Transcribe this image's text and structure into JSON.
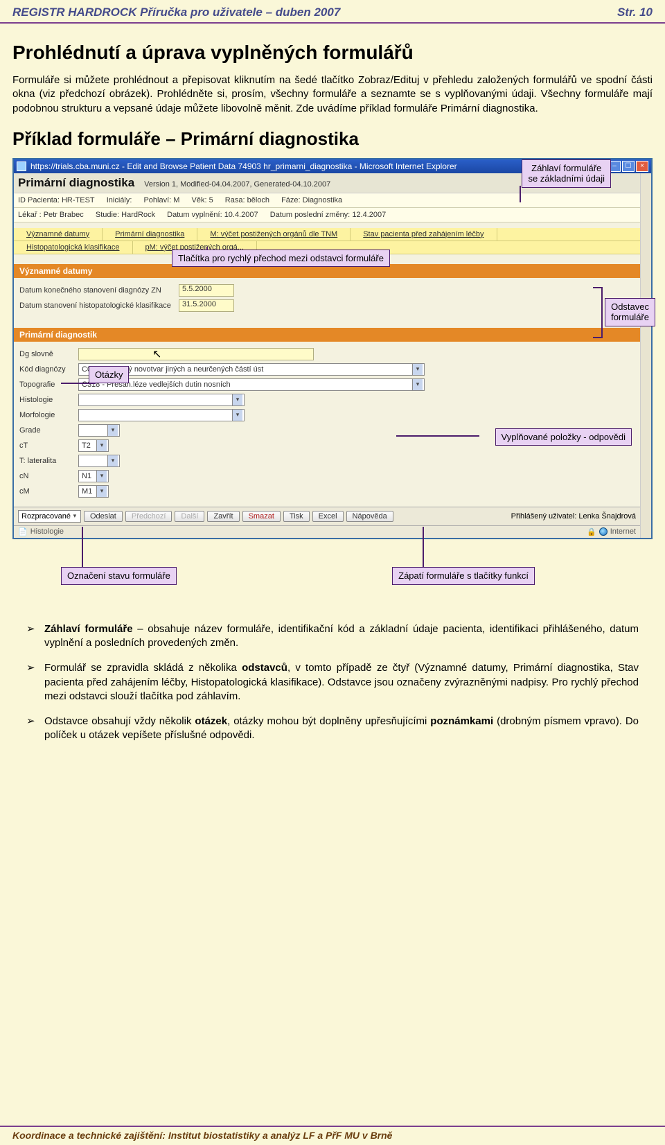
{
  "header": {
    "left": "REGISTR HARDROCK   Příručka pro uživatele – duben 2007",
    "right": "Str.   10"
  },
  "h1": "Prohlédnutí a úprava vyplněných formulářů",
  "para1": "Formuláře si můžete prohlédnout a přepisovat kliknutím na šedé tlačítko Zobraz/Edituj v přehledu založených formulářů ve spodní části okna (viz předchozí obrázek). Prohlédněte si, prosím, všechny formuláře a seznamte se s vyplňovanými údaji. Všechny formuláře mají podobnou strukturu a vepsané údaje můžete libovolně měnit. Zde uvádíme příklad formuláře Primární diagnostika.",
  "h2": "Příklad formuláře – Primární diagnostika",
  "window": {
    "title": "https://trials.cba.muni.cz - Edit and Browse Patient Data 74903 hr_primarni_diagnostika - Microsoft Internet Explorer",
    "app_title": "Primární diagnostika",
    "version": "Version 1, Modified-04.04.2007, Generated-04.10.2007",
    "id_row1": {
      "id_patient_lbl": "ID Pacienta:",
      "id_patient": "HR-TEST",
      "inic_lbl": "Iniciály:",
      "inic": "",
      "pohlavi_lbl": "Pohlaví:",
      "pohlavi": "M",
      "vek_lbl": "Věk:",
      "vek": "5",
      "rasa_lbl": "Rasa:",
      "rasa": "běloch",
      "faze_lbl": "Fáze:",
      "faze": "Diagnostika"
    },
    "id_row2": {
      "lekar_lbl": "Lékař :",
      "lekar": "Petr Brabec",
      "studie_lbl": "Studie:",
      "studie": "HardRock",
      "vypln_lbl": "Datum vyplnění:",
      "vypln": "10.4.2007",
      "zmena_lbl": "Datum poslední změny:",
      "zmena": "12.4.2007"
    },
    "tabs1": [
      "Významné datumy",
      "Primární diagnostika",
      "M: výčet postižených orgánů dle TNM",
      "Stav pacienta před zahájením léčby"
    ],
    "tabs2": [
      "Histopatologická klasifikace",
      "pM: výčet postižených orgá..."
    ],
    "section1": {
      "title": "Významné datumy",
      "r1_lbl": "Datum konečného stanovení diagnózy ZN",
      "r1_val": "5.5.2000",
      "r2_lbl": "Datum stanovení histopatologické klasifikace",
      "r2_val": "31.5.2000"
    },
    "section2": {
      "title": "Primární diagnostik",
      "dg_lbl": "Dg slovně",
      "dg_val": "",
      "kod_lbl": "Kód diagnózy",
      "kod_val": "C06 - Zhoubný novotvar jiných a neurčených částí úst",
      "topo_lbl": "Topografie",
      "topo_val": "C318 - Přesah.léze vedlejších dutin nosních",
      "histo_lbl": "Histologie",
      "histo_val": "",
      "morf_lbl": "Morfologie",
      "morf_val": "",
      "grade_lbl": "Grade",
      "grade_val": "",
      "ct_lbl": "cT",
      "ct_val": "T2",
      "lat_lbl": "T: lateralita",
      "lat_val": "",
      "cn_lbl": "cN",
      "cn_val": "N1",
      "cm_lbl": "cM",
      "cm_val": "M1"
    },
    "footer": {
      "state": "Rozpracované",
      "buttons": [
        "Odeslat",
        "Předchozí",
        "Další",
        "Zavřít",
        "Smazat",
        "Tisk",
        "Excel",
        "Nápověda"
      ],
      "logged": "Přihlášený uživatel: Lenka Šnajdrová"
    },
    "status_left": "Histologie",
    "status_right": "Internet"
  },
  "callouts": {
    "c_head": "Záhlaví formuláře\nse základními údaji",
    "c_tabs": "Tlačítka pro rychlý přechod mezi odstavci formuláře",
    "c_section": "Odstavec\nformuláře",
    "c_questions": "Otázky",
    "c_answers": "Vyplňované položky - odpovědi",
    "c_state": "Označení stavu formuláře",
    "c_footer": "Zápatí formuláře s tlačítky funkcí"
  },
  "bullets": {
    "b1": "Záhlaví formuláře – obsahuje název formuláře, identifikační kód a základní údaje pacienta, identifikaci přihlášeného, datum vyplnění a posledních provedených změn.",
    "b2": "Formulář se zpravidla skládá z několika odstavců, v tomto případě ze čtyř (Významné datumy, Primární diagnostika, Stav pacienta před zahájením léčby, Histopatologická klasifikace). Odstavce jsou označeny zvýrazněnými nadpisy. Pro rychlý přechod mezi odstavci slouží tlačítka pod záhlavím.",
    "b3": "Odstavce obsahují vždy několik otázek, otázky mohou být doplněny upřesňujícími poznámkami (drobným písmem vpravo). Do políček u otázek vepíšete příslušné odpovědi."
  },
  "footer": "Koordinace a technické zajištění: Institut biostatistiky a analýz LF a PřF MU v Brně",
  "colors": {
    "page_bg": "#faf7d8",
    "accent_purple": "#7b3f8e",
    "callout_bg": "#e8d2f3",
    "callout_border": "#4b1d6b",
    "orange_header": "#e48826",
    "yellow_tab": "#fdf3a1",
    "input_yellow": "#fffbc9",
    "ie_blue": "#2a5fc9"
  }
}
